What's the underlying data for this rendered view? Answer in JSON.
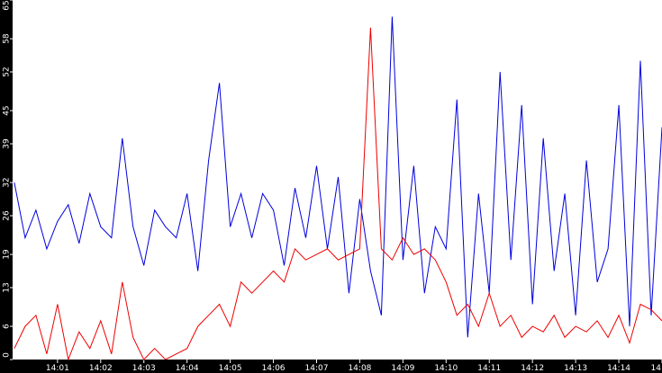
{
  "chart_data": {
    "type": "line",
    "x": [
      0,
      0.25,
      0.5,
      0.75,
      1,
      1.25,
      1.5,
      1.75,
      2,
      2.25,
      2.5,
      2.75,
      3,
      3.25,
      3.5,
      3.75,
      4,
      4.25,
      4.5,
      4.75,
      5,
      5.25,
      5.5,
      5.75,
      6,
      6.25,
      6.5,
      6.75,
      7,
      7.25,
      7.5,
      7.75,
      8,
      8.25,
      8.5,
      8.75,
      9,
      9.25,
      9.5,
      9.75,
      10,
      10.25,
      10.5,
      10.75,
      11,
      11.25,
      11.5,
      11.75,
      12,
      12.25,
      12.5,
      12.75,
      13,
      13.25,
      13.5,
      13.75,
      14,
      14.25,
      14.5,
      14.75,
      15
    ],
    "series": [
      {
        "color": "#0000dd",
        "values": [
          32,
          22,
          27,
          20,
          25,
          28,
          21,
          30,
          24,
          22,
          40,
          24,
          17,
          27,
          24,
          22,
          30,
          16,
          36,
          50,
          24,
          30,
          22,
          30,
          27,
          17,
          31,
          22,
          35,
          20,
          33,
          12,
          29,
          16,
          8,
          62,
          18,
          35,
          12,
          24,
          20,
          47,
          4,
          30,
          12,
          52,
          18,
          46,
          10,
          40,
          16,
          30,
          8,
          36,
          14,
          20,
          46,
          6,
          54,
          8,
          42
        ]
      },
      {
        "color": "#ee0000",
        "values": [
          2,
          6,
          8,
          1,
          10,
          0,
          5,
          2,
          7,
          1,
          14,
          4,
          0,
          2,
          0,
          1,
          2,
          6,
          8,
          10,
          6,
          14,
          12,
          14,
          16,
          14,
          20,
          18,
          19,
          20,
          18,
          19,
          20,
          60,
          20,
          18,
          22,
          19,
          20,
          18,
          14,
          8,
          10,
          6,
          12,
          6,
          8,
          4,
          6,
          5,
          8,
          4,
          6,
          5,
          7,
          4,
          8,
          3,
          10,
          9,
          7
        ]
      }
    ],
    "xlim": [
      -0.04,
      15
    ],
    "xticks": [
      {
        "value": 1,
        "label": "14:01"
      },
      {
        "value": 2,
        "label": "14:02"
      },
      {
        "value": 3,
        "label": "14:03"
      },
      {
        "value": 4,
        "label": "14:04"
      },
      {
        "value": 5,
        "label": "14:05"
      },
      {
        "value": 6,
        "label": "14:06"
      },
      {
        "value": 7,
        "label": "14:07"
      },
      {
        "value": 8,
        "label": "14:08"
      },
      {
        "value": 9,
        "label": "14:09"
      },
      {
        "value": 10,
        "label": "14:10"
      },
      {
        "value": 11,
        "label": "14:11"
      },
      {
        "value": 12,
        "label": "14:12"
      },
      {
        "value": 13,
        "label": "14:13"
      },
      {
        "value": 14,
        "label": "14:14"
      },
      {
        "value": 15,
        "label": "14"
      }
    ],
    "ylim": [
      0,
      65
    ],
    "yticks": [
      0,
      6,
      13,
      19,
      26,
      32,
      39,
      45,
      52,
      58,
      65
    ]
  }
}
